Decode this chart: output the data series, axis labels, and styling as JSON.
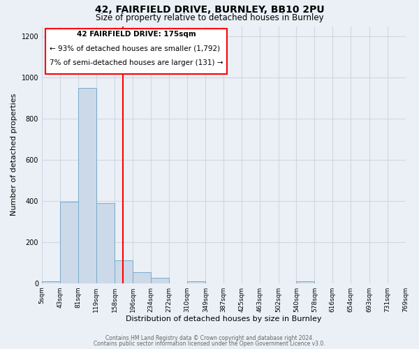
{
  "title_line1": "42, FAIRFIELD DRIVE, BURNLEY, BB10 2PU",
  "title_line2": "Size of property relative to detached houses in Burnley",
  "xlabel": "Distribution of detached houses by size in Burnley",
  "ylabel": "Number of detached properties",
  "bar_left_edges": [
    5,
    43,
    81,
    119,
    158,
    196,
    234,
    272,
    310,
    349,
    387,
    425,
    463,
    502,
    540,
    578,
    616,
    654,
    693,
    731
  ],
  "bar_heights": [
    10,
    395,
    950,
    390,
    110,
    55,
    25,
    0,
    10,
    0,
    0,
    0,
    0,
    0,
    10,
    0,
    0,
    0,
    0,
    0
  ],
  "bin_width": 38,
  "bar_color": "#ccd9e8",
  "bar_edge_color": "#7aabcc",
  "reference_line_x": 175,
  "ylim": [
    0,
    1250
  ],
  "yticks": [
    0,
    200,
    400,
    600,
    800,
    1000,
    1200
  ],
  "xlim_left": 5,
  "xlim_right": 769,
  "xtick_positions": [
    5,
    43,
    81,
    119,
    158,
    196,
    234,
    272,
    310,
    349,
    387,
    425,
    463,
    502,
    540,
    578,
    616,
    654,
    693,
    731,
    769
  ],
  "xtick_labels": [
    "5sqm",
    "43sqm",
    "81sqm",
    "119sqm",
    "158sqm",
    "196sqm",
    "234sqm",
    "272sqm",
    "310sqm",
    "349sqm",
    "387sqm",
    "425sqm",
    "463sqm",
    "502sqm",
    "540sqm",
    "578sqm",
    "616sqm",
    "654sqm",
    "693sqm",
    "731sqm",
    "769sqm"
  ],
  "annotation_line1": "42 FAIRFIELD DRIVE: 175sqm",
  "annotation_line2": "← 93% of detached houses are smaller (1,792)",
  "annotation_line3": "7% of semi-detached houses are larger (131) →",
  "footer_line1": "Contains HM Land Registry data © Crown copyright and database right 2024.",
  "footer_line2": "Contains public sector information licensed under the Open Government Licence v3.0.",
  "grid_color": "#cdd8e4",
  "background_color": "#eaf0f6",
  "title_fontsize": 10,
  "subtitle_fontsize": 8.5,
  "ylabel_fontsize": 8,
  "xlabel_fontsize": 8,
  "tick_fontsize": 6.5,
  "footer_fontsize": 5.5
}
